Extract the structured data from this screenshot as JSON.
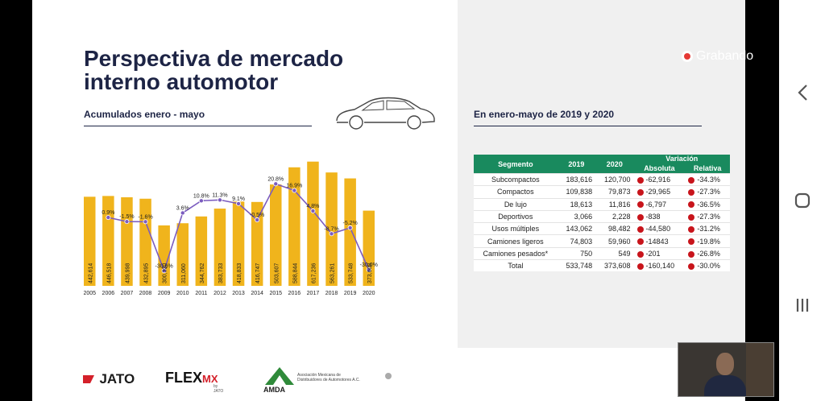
{
  "slide": {
    "title_line1": "Perspectiva de mercado",
    "title_line2": "interno automotor",
    "left_subtitle": "Acumulados enero - mayo",
    "right_subtitle": "En enero-mayo de 2019 y 2020"
  },
  "chart_data": {
    "type": "bar",
    "categories": [
      "2005",
      "2006",
      "2007",
      "2008",
      "2009",
      "2010",
      "2011",
      "2012",
      "2013",
      "2014",
      "2015",
      "2016",
      "2017",
      "2018",
      "2019",
      "2020"
    ],
    "values": [
      442614,
      446518,
      439998,
      432895,
      300320,
      311060,
      344762,
      383733,
      418833,
      416747,
      503607,
      588844,
      617236,
      563261,
      533748,
      373608
    ],
    "value_labels": [
      "442,614",
      "446,518",
      "439,998",
      "432,895",
      "300,320",
      "311,060",
      "344,762",
      "383,733",
      "418,833",
      "416,747",
      "503,607",
      "588,844",
      "617,236",
      "563,261",
      "533,748",
      "373,608"
    ],
    "growth": [
      null,
      0.9,
      -1.5,
      -1.6,
      -30.6,
      3.6,
      10.8,
      11.3,
      9.1,
      -0.5,
      20.8,
      16.9,
      4.8,
      -8.7,
      -5.2,
      -30.0
    ],
    "growth_labels": [
      "",
      "0.9%",
      "-1.5%",
      "-1.6%",
      "-30.6%",
      "3.6%",
      "10.8%",
      "11.3%",
      "9.1%",
      "-0.5%",
      "20.8%",
      "16.9%",
      "4.8%",
      "-8.7%",
      "-5.2%",
      "-30.0%"
    ],
    "bar_color": "#f0b41c",
    "line_color": "#7b5cbf"
  },
  "table": {
    "headers": {
      "segmento": "Segmento",
      "y2019": "2019",
      "y2020": "2020",
      "variacion": "Variación",
      "absoluta": "Absoluta",
      "relativa": "Relativa"
    },
    "rows": [
      {
        "segmento": "Subcompactos",
        "y2019": "183,616",
        "y2020": "120,700",
        "absoluta": "-62,916",
        "relativa": "-34.3%"
      },
      {
        "segmento": "Compactos",
        "y2019": "109,838",
        "y2020": "79,873",
        "absoluta": "-29,965",
        "relativa": "-27.3%"
      },
      {
        "segmento": "De lujo",
        "y2019": "18,613",
        "y2020": "11,816",
        "absoluta": "-6,797",
        "relativa": "-36.5%"
      },
      {
        "segmento": "Deportivos",
        "y2019": "3,066",
        "y2020": "2,228",
        "absoluta": "-838",
        "relativa": "-27.3%"
      },
      {
        "segmento": "Usos múltiples",
        "y2019": "143,062",
        "y2020": "98,482",
        "absoluta": "-44,580",
        "relativa": "-31.2%"
      },
      {
        "segmento": "Camiones ligeros",
        "y2019": "74,803",
        "y2020": "59,960",
        "absoluta": "-14843",
        "relativa": "-19.8%"
      },
      {
        "segmento": "Camiones pesados*",
        "y2019": "750",
        "y2020": "549",
        "absoluta": "-201",
        "relativa": "-26.8%"
      },
      {
        "segmento": "Total",
        "y2019": "533,748",
        "y2020": "373,608",
        "absoluta": "-160,140",
        "relativa": "-30.0%"
      }
    ]
  },
  "logos": {
    "jato": "JATO",
    "flex": "FLEX",
    "flex_mx": "MX",
    "flex_small": "by JATO",
    "amda": "AMDA",
    "amda_text1": "Asociación Mexicana de",
    "amda_text2": "Distribuidores de Automotores A.C."
  },
  "recording": {
    "label": "Grabando"
  },
  "icons": {
    "back": "chevron-left-icon",
    "home": "circle-home-icon",
    "recents": "three-bars-icon"
  },
  "colors": {
    "title": "#1d2445",
    "table_header": "#198a5e",
    "negative_dot": "#c8141b",
    "jato_red": "#d4202a"
  }
}
